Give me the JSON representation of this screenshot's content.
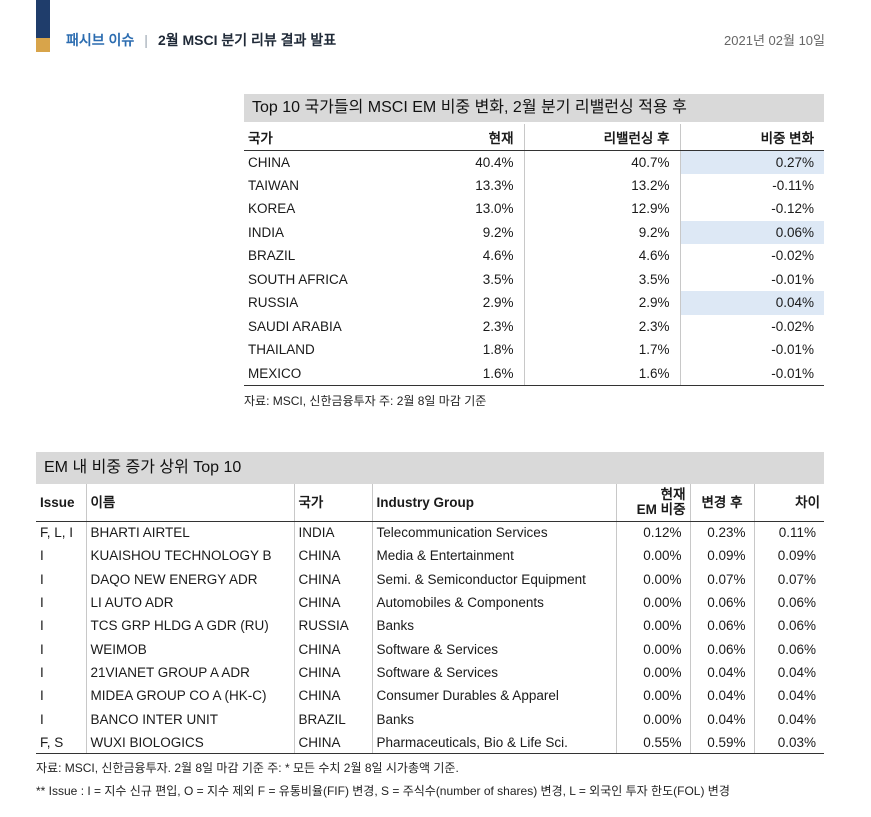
{
  "header": {
    "category": "패시브 이슈",
    "separator": "|",
    "title": "2월 MSCI 분기 리뷰 결과 발표",
    "date": "2021년 02월 10일"
  },
  "table1": {
    "title": "Top 10 국가들의 MSCI EM 비중 변화, 2월 분기 리밸런싱 적용 후",
    "columns": [
      "국가",
      "현재",
      "리밸런싱 후",
      "비중 변화"
    ],
    "rows": [
      {
        "country": "CHINA",
        "current": "40.4%",
        "after": "40.7%",
        "change": "0.27%",
        "highlight": true
      },
      {
        "country": "TAIWAN",
        "current": "13.3%",
        "after": "13.2%",
        "change": "-0.11%",
        "highlight": false
      },
      {
        "country": "KOREA",
        "current": "13.0%",
        "after": "12.9%",
        "change": "-0.12%",
        "highlight": false
      },
      {
        "country": "INDIA",
        "current": "9.2%",
        "after": "9.2%",
        "change": "0.06%",
        "highlight": true
      },
      {
        "country": "BRAZIL",
        "current": "4.6%",
        "after": "4.6%",
        "change": "-0.02%",
        "highlight": false
      },
      {
        "country": "SOUTH AFRICA",
        "current": "3.5%",
        "after": "3.5%",
        "change": "-0.01%",
        "highlight": false
      },
      {
        "country": "RUSSIA",
        "current": "2.9%",
        "after": "2.9%",
        "change": "0.04%",
        "highlight": true
      },
      {
        "country": "SAUDI ARABIA",
        "current": "2.3%",
        "after": "2.3%",
        "change": "-0.02%",
        "highlight": false
      },
      {
        "country": "THAILAND",
        "current": "1.8%",
        "after": "1.7%",
        "change": "-0.01%",
        "highlight": false
      },
      {
        "country": "MEXICO",
        "current": "1.6%",
        "after": "1.6%",
        "change": "-0.01%",
        "highlight": false
      }
    ],
    "source": "자료: MSCI, 신한금융투자 주: 2월 8일 마감 기준"
  },
  "table2": {
    "title": "EM 내 비중 증가 상위 Top 10",
    "columns": {
      "issue": "Issue",
      "name": "이름",
      "country": "국가",
      "industry": "Industry Group",
      "current_line1": "현재",
      "current_line2": "EM 비중",
      "change": "변경 후",
      "diff": "차이"
    },
    "rows": [
      {
        "issue": "F, L, I",
        "name": "BHARTI AIRTEL",
        "country": "INDIA",
        "industry": "Telecommunication Services",
        "current": "0.12%",
        "after": "0.23%",
        "diff": "0.11%"
      },
      {
        "issue": "I",
        "name": "KUAISHOU TECHNOLOGY B",
        "country": "CHINA",
        "industry": "Media & Entertainment",
        "current": "0.00%",
        "after": "0.09%",
        "diff": "0.09%"
      },
      {
        "issue": "I",
        "name": "DAQO NEW ENERGY ADR",
        "country": "CHINA",
        "industry": "Semi. & Semiconductor Equipment",
        "current": "0.00%",
        "after": "0.07%",
        "diff": "0.07%"
      },
      {
        "issue": "I",
        "name": "LI AUTO ADR",
        "country": "CHINA",
        "industry": "Automobiles & Components",
        "current": "0.00%",
        "after": "0.06%",
        "diff": "0.06%"
      },
      {
        "issue": "I",
        "name": "TCS GRP HLDG A GDR (RU)",
        "country": "RUSSIA",
        "industry": "Banks",
        "current": "0.00%",
        "after": "0.06%",
        "diff": "0.06%"
      },
      {
        "issue": "I",
        "name": "WEIMOB",
        "country": "CHINA",
        "industry": "Software & Services",
        "current": "0.00%",
        "after": "0.06%",
        "diff": "0.06%"
      },
      {
        "issue": "I",
        "name": "21VIANET GROUP A ADR",
        "country": "CHINA",
        "industry": "Software & Services",
        "current": "0.00%",
        "after": "0.04%",
        "diff": "0.04%"
      },
      {
        "issue": "I",
        "name": "MIDEA GROUP CO A (HK-C)",
        "country": "CHINA",
        "industry": "Consumer Durables & Apparel",
        "current": "0.00%",
        "after": "0.04%",
        "diff": "0.04%"
      },
      {
        "issue": "I",
        "name": "BANCO INTER UNIT",
        "country": "BRAZIL",
        "industry": "Banks",
        "current": "0.00%",
        "after": "0.04%",
        "diff": "0.04%"
      },
      {
        "issue": "F, S",
        "name": "WUXI BIOLOGICS",
        "country": "CHINA",
        "industry": "Pharmaceuticals, Bio & Life Sci.",
        "current": "0.55%",
        "after": "0.59%",
        "diff": "0.03%"
      }
    ],
    "source": "자료: MSCI, 신한금융투자. 2월 8일 마감 기준 주: * 모든 수치 2월 8일 시가총액 기준.",
    "note": "** Issue : I = 지수 신규 편입, O = 지수 제외 F = 유통비율(FIF) 변경, S = 주식수(number of shares) 변경, L = 외국인 투자 한도(FOL) 변경"
  },
  "colors": {
    "brand_navy": "#1f3d6b",
    "brand_gold": "#d8a44a",
    "category_blue": "#2b6cb0",
    "title_bar_gray": "#d9d9d9",
    "highlight_blue": "#dde8f5"
  }
}
